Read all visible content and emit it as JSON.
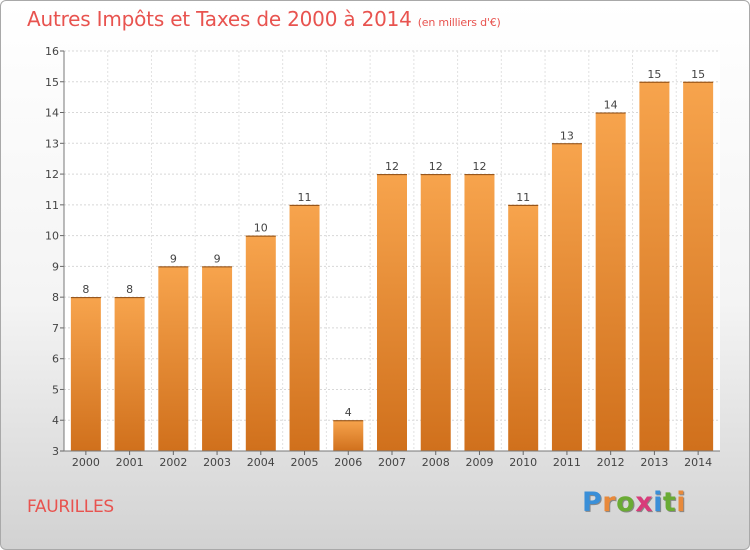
{
  "title": "Autres Impôts et Taxes de 2000 à 2014",
  "title_unit": "(en milliers d'€)",
  "commune": "FAURILLES",
  "logo": {
    "letters": [
      "P",
      "r",
      "o",
      "x",
      "i",
      "t",
      "i"
    ],
    "colors": [
      "#3a8fd8",
      "#e8893a",
      "#6aab34",
      "#d83c7a",
      "#3a8fd8",
      "#6aab34",
      "#e8893a"
    ]
  },
  "chart_data": {
    "type": "bar",
    "categories": [
      "2000",
      "2001",
      "2002",
      "2003",
      "2004",
      "2005",
      "2006",
      "2007",
      "2008",
      "2009",
      "2010",
      "2011",
      "2012",
      "2013",
      "2014"
    ],
    "values": [
      8,
      8,
      9,
      9,
      10,
      11,
      4,
      12,
      12,
      12,
      11,
      13,
      14,
      15,
      15
    ],
    "data_labels": [
      "8",
      "8",
      "9",
      "9",
      "10",
      "11",
      "4",
      "12",
      "12",
      "12",
      "11",
      "13",
      "14",
      "15",
      "15"
    ],
    "ylim": [
      3,
      16
    ],
    "yticks": [
      "3",
      "4",
      "5",
      "6",
      "7",
      "8",
      "9",
      "10",
      "11",
      "12",
      "13",
      "14",
      "15",
      "16"
    ],
    "grid": true,
    "bar_color_top": "#f7a44d",
    "bar_color_bottom": "#d0701c"
  }
}
